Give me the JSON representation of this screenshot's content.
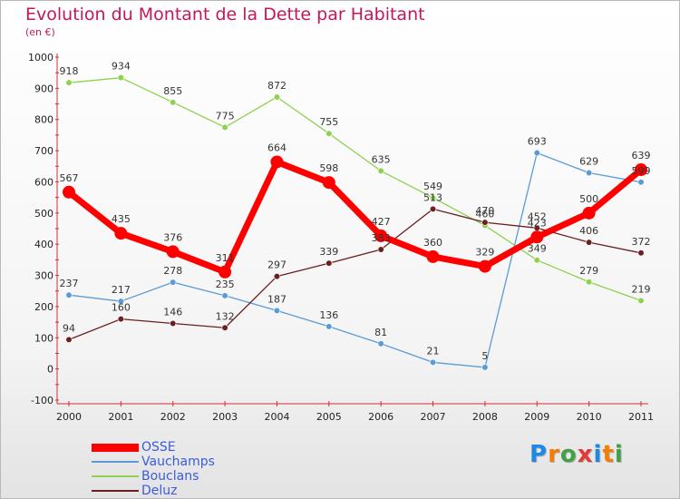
{
  "title": "Evolution du Montant de la Dette par Habitant",
  "subtitle": "(en €)",
  "brand": {
    "letters": [
      "P",
      "r",
      "o",
      "x",
      "i",
      "t",
      "i"
    ],
    "colors": [
      "#1e88e5",
      "#f57c00",
      "#43a047",
      "#e53935",
      "#1e88e5",
      "#f57c00",
      "#43a047"
    ]
  },
  "chart_data": {
    "type": "line",
    "x": [
      "2000",
      "2001",
      "2002",
      "2003",
      "2004",
      "2005",
      "2006",
      "2007",
      "2008",
      "2009",
      "2010",
      "2011"
    ],
    "ylim": [
      -100,
      1000
    ],
    "yticks": [
      -100,
      0,
      100,
      200,
      300,
      400,
      500,
      600,
      700,
      800,
      900,
      1000
    ],
    "grid": false,
    "legend_position": "bottom-left",
    "series": [
      {
        "name": "Bouclans",
        "color": "#8fd14f",
        "values": [
          918,
          934,
          855,
          775,
          872,
          755,
          635,
          549,
          460,
          349,
          279,
          219
        ]
      },
      {
        "name": "Vauchamps",
        "color": "#5b9bd5",
        "values": [
          237,
          217,
          278,
          235,
          187,
          136,
          81,
          21,
          5,
          693,
          629,
          599
        ]
      },
      {
        "name": "Deluz",
        "color": "#6b1f1f",
        "values": [
          94,
          160,
          146,
          132,
          297,
          339,
          383,
          513,
          470,
          452,
          406,
          372
        ]
      },
      {
        "name": "OSSE",
        "color": "#ff0000",
        "values": [
          567,
          435,
          376,
          311,
          664,
          598,
          427,
          360,
          329,
          423,
          500,
          639
        ]
      }
    ],
    "legend": [
      "OSSE",
      "Vauchamps",
      "Bouclans",
      "Deluz"
    ]
  }
}
